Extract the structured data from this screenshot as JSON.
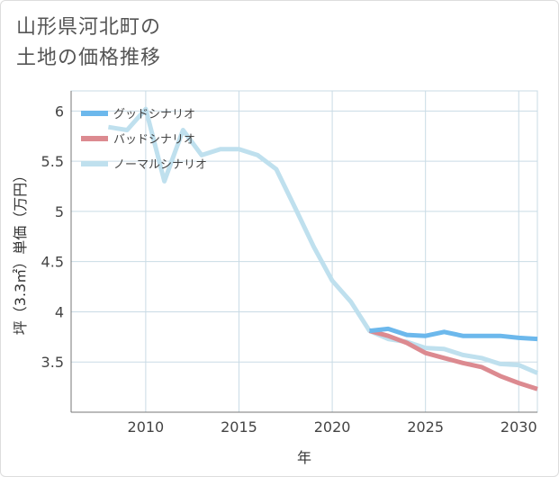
{
  "title_lines": [
    "山形県河北町の",
    "土地の価格推移"
  ],
  "colors": {
    "good": "#6cb8ec",
    "bad": "#dc8a90",
    "normal": "#bfe0ee",
    "grid": "#c9dbe5",
    "frame": "#777777"
  },
  "chart_data": {
    "type": "line",
    "title": "山形県河北町の土地の価格推移",
    "xlabel": "年",
    "ylabel": "坪（3.3㎡）単価（万円）",
    "xlim": [
      2006,
      2031
    ],
    "ylim": [
      3.0,
      6.2
    ],
    "x_ticks": [
      2010,
      2015,
      2020,
      2025,
      2030
    ],
    "y_ticks": [
      3.5,
      4,
      4.5,
      5,
      5.5,
      6
    ],
    "y_tick_labels": [
      "3.5",
      "4",
      "4.5",
      "5",
      "5.5",
      "6"
    ],
    "grid": true,
    "legend_position": "top-left",
    "series": [
      {
        "name": "グッドシナリオ",
        "color_key": "good",
        "x": [
          2022,
          2023,
          2024,
          2025,
          2026,
          2027,
          2028,
          2029,
          2030,
          2031
        ],
        "y": [
          3.81,
          3.83,
          3.77,
          3.76,
          3.8,
          3.76,
          3.76,
          3.76,
          3.74,
          3.73
        ]
      },
      {
        "name": "バッドシナリオ",
        "color_key": "bad",
        "x": [
          2022,
          2023,
          2024,
          2025,
          2026,
          2027,
          2028,
          2029,
          2030,
          2031
        ],
        "y": [
          3.81,
          3.76,
          3.69,
          3.59,
          3.54,
          3.49,
          3.45,
          3.36,
          3.29,
          3.23
        ]
      },
      {
        "name": "ノーマルシナリオ",
        "color_key": "normal",
        "x": [
          2008,
          2009,
          2010,
          2011,
          2012,
          2013,
          2014,
          2015,
          2016,
          2017,
          2018,
          2019,
          2020,
          2021,
          2022,
          2023,
          2024,
          2025,
          2026,
          2027,
          2028,
          2029,
          2030,
          2031
        ],
        "y": [
          5.84,
          5.81,
          6.02,
          5.3,
          5.81,
          5.56,
          5.62,
          5.62,
          5.56,
          5.42,
          5.04,
          4.65,
          4.31,
          4.1,
          3.81,
          3.73,
          3.7,
          3.64,
          3.63,
          3.57,
          3.54,
          3.48,
          3.47,
          3.39
        ]
      }
    ]
  }
}
